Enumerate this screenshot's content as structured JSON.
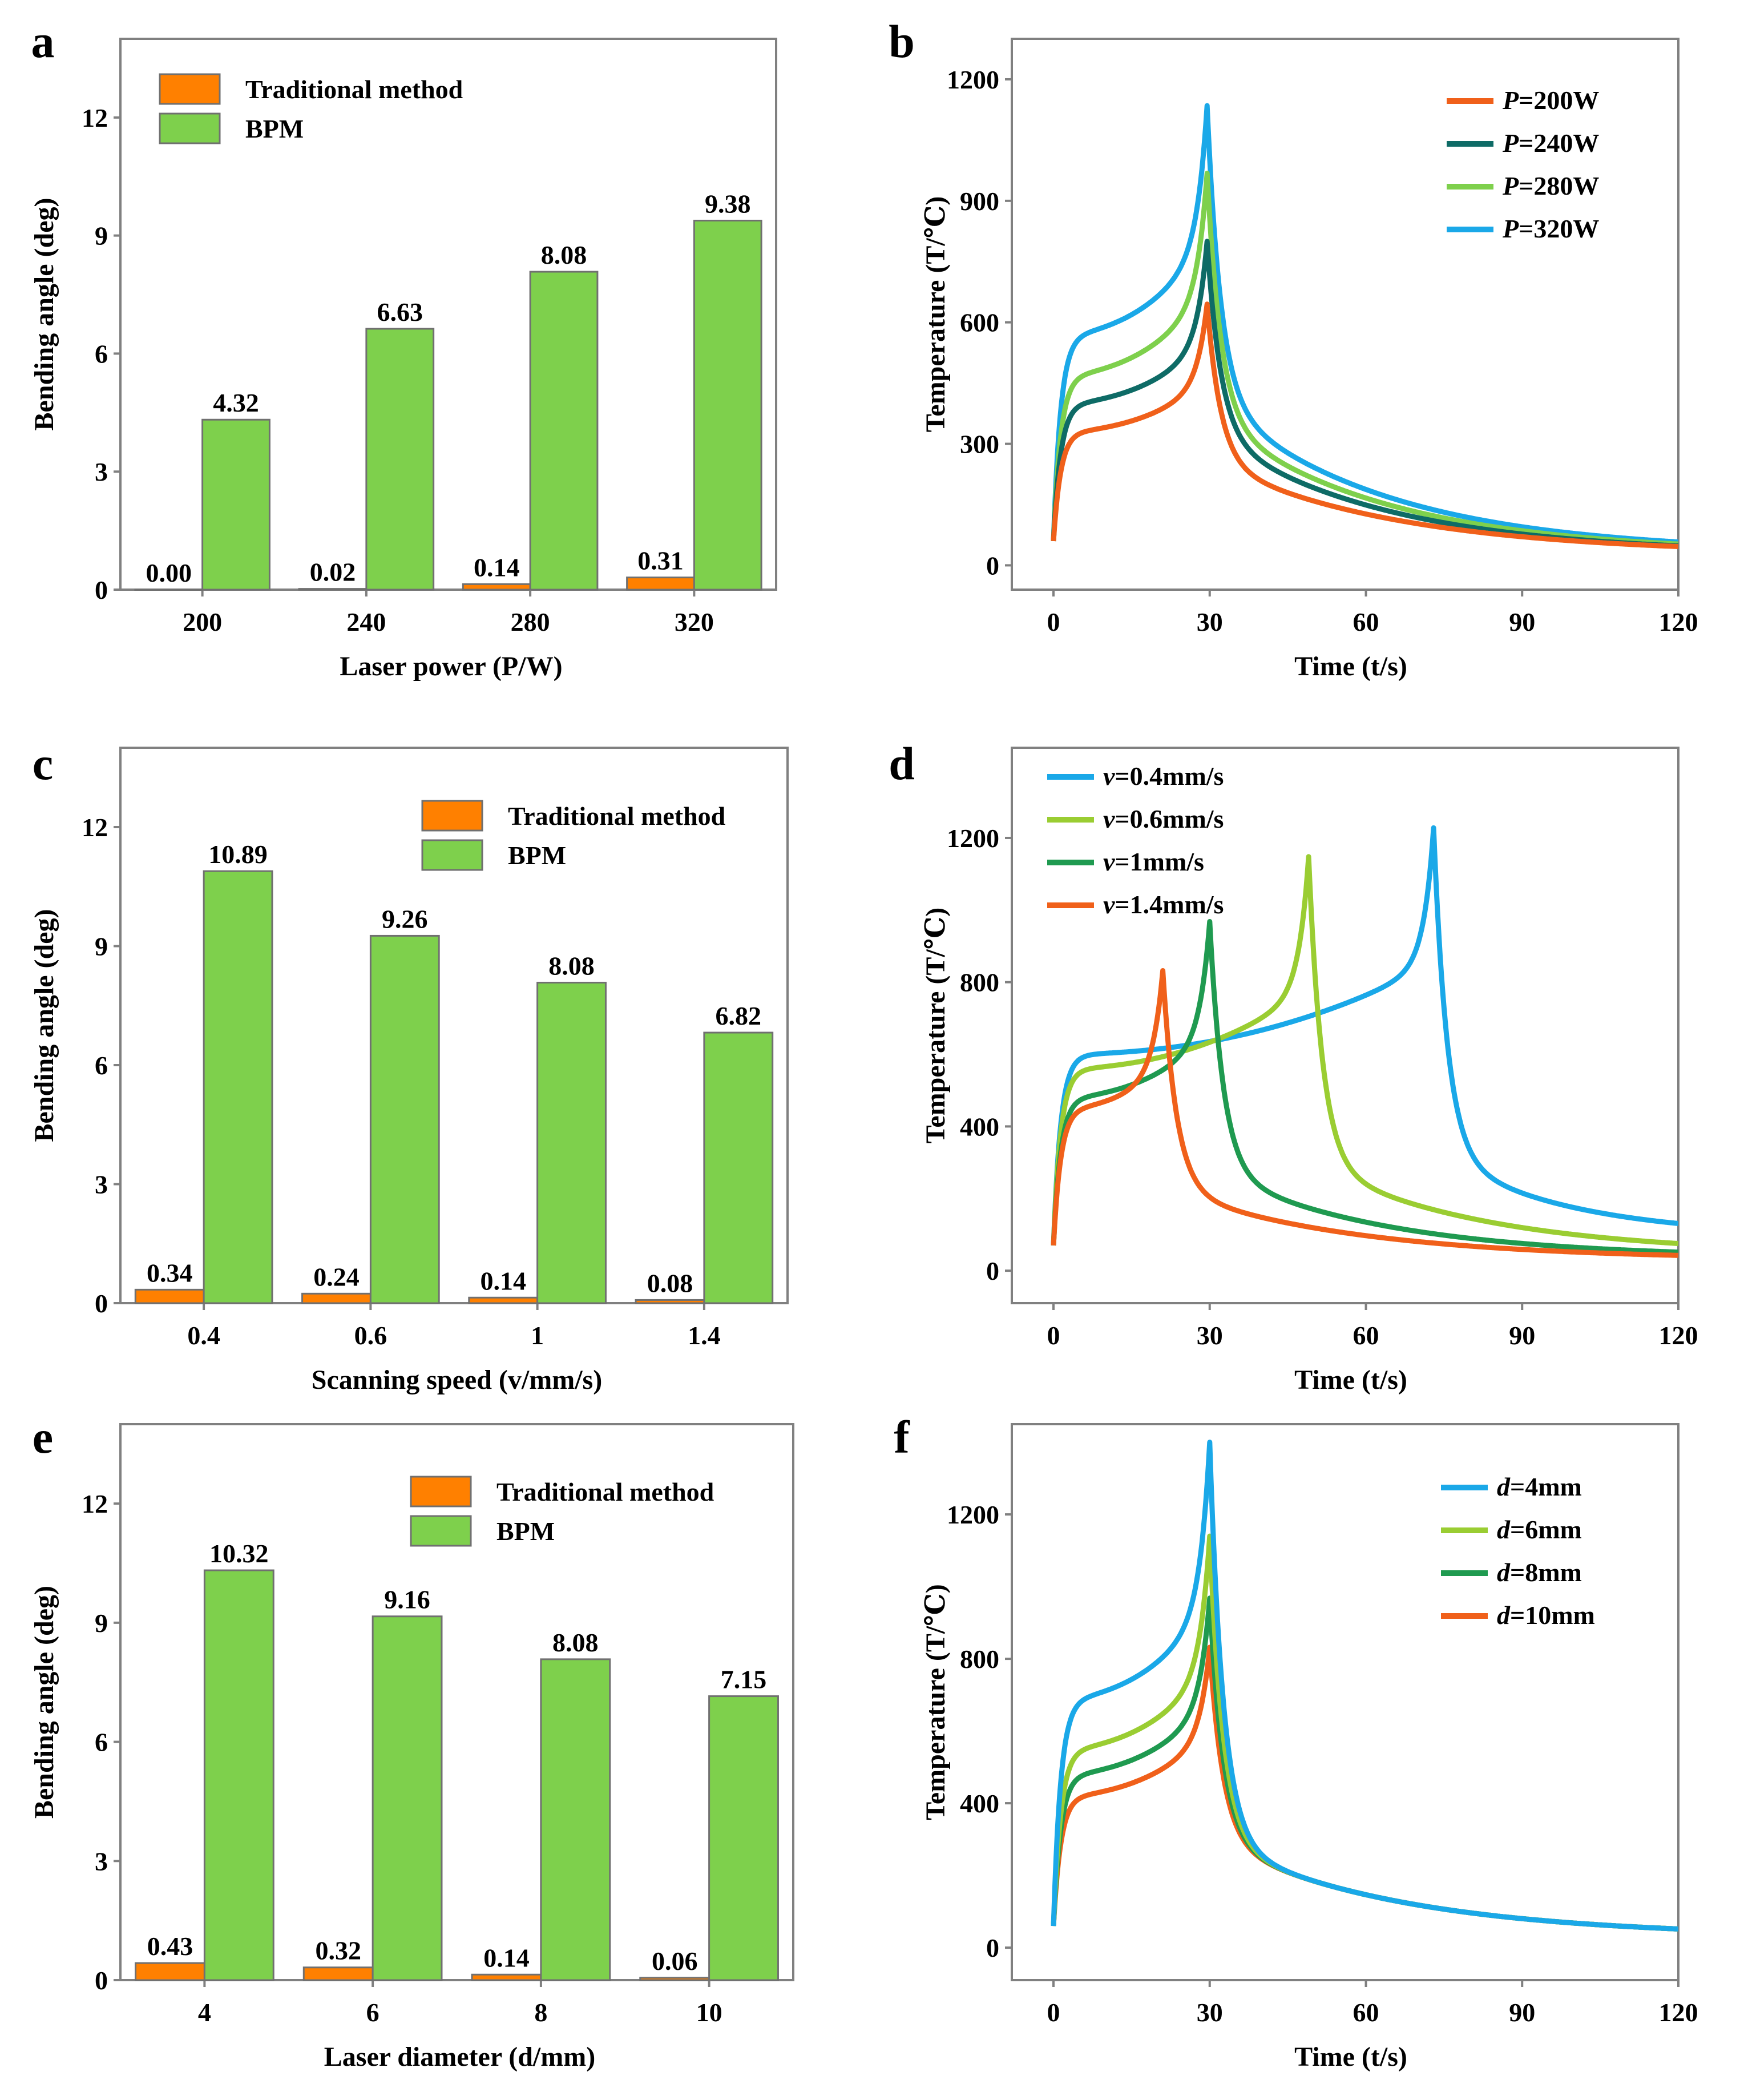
{
  "figure": {
    "colors": {
      "traditional": "#ff8000",
      "bpm": "#7ed04c",
      "axis": "#808080"
    }
  },
  "chart_data": [
    {
      "id": "a",
      "panel": "a",
      "type": "bar",
      "xlabel": "Laser power  (P/W)",
      "ylabel": "Bending angle (deg)",
      "ylim": [
        0,
        14
      ],
      "yticks": [
        0,
        3,
        6,
        9,
        12
      ],
      "categories": [
        "200",
        "240",
        "280",
        "320"
      ],
      "legend_position": "top-left",
      "series": [
        {
          "name": "Traditional method",
          "color": "#ff8000",
          "values": [
            0.0,
            0.02,
            0.14,
            0.31
          ],
          "labels": [
            "0.00",
            "0.02",
            "0.14",
            "0.31"
          ]
        },
        {
          "name": "BPM",
          "color": "#7ed04c",
          "values": [
            4.32,
            6.63,
            8.08,
            9.38
          ],
          "labels": [
            "4.32",
            "6.63",
            "8.08",
            "9.38"
          ]
        }
      ]
    },
    {
      "id": "b",
      "panel": "b",
      "type": "line",
      "xlabel": "Time (t/s)",
      "ylabel": "Temperature (T/℃)",
      "xlim": [
        -8,
        120
      ],
      "ylim": [
        -60,
        1300
      ],
      "xticks": [
        0,
        30,
        60,
        90,
        120
      ],
      "yticks": [
        0,
        300,
        600,
        900,
        1200
      ],
      "legend_position": "top-right",
      "series": [
        {
          "name": "P=200W",
          "var": "P",
          "rest": "=200W",
          "color": "#f0601a",
          "start": 60,
          "shoulder": 330,
          "pre_peak": 460,
          "peak": 645,
          "peak_time": 29.5,
          "after": 260,
          "tail_k": 0.028,
          "end": 28
        },
        {
          "name": "P=240W",
          "var": "P",
          "rest": "=240W",
          "color": "#0e6b66",
          "start": 60,
          "shoulder": 400,
          "pre_peak": 560,
          "peak": 800,
          "peak_time": 29.5,
          "after": 330,
          "tail_k": 0.03,
          "end": 28
        },
        {
          "name": "P=280W",
          "var": "P",
          "rest": "=280W",
          "color": "#7ed04c",
          "start": 60,
          "shoulder": 470,
          "pre_peak": 680,
          "peak": 968,
          "peak_time": 29.5,
          "after": 370,
          "tail_k": 0.03,
          "end": 30
        },
        {
          "name": "P=320W",
          "var": "P",
          "rest": "=320W",
          "color": "#1aa8e8",
          "start": 60,
          "shoulder": 570,
          "pre_peak": 810,
          "peak": 1135,
          "peak_time": 29.5,
          "after": 420,
          "tail_k": 0.03,
          "end": 32
        }
      ]
    },
    {
      "id": "c",
      "panel": "c",
      "type": "bar",
      "xlabel": "Scanning speed  (v/mm/s)",
      "ylabel": "Bending angle (deg)",
      "ylim": [
        0,
        14
      ],
      "yticks": [
        0,
        3,
        6,
        9,
        12
      ],
      "categories": [
        "0.4",
        "0.6",
        "1",
        "1.4"
      ],
      "legend_position": "top-right",
      "series": [
        {
          "name": "Traditional method",
          "color": "#ff8000",
          "values": [
            0.34,
            0.24,
            0.14,
            0.08
          ],
          "labels": [
            "0.34",
            "0.24",
            "0.14",
            "0.08"
          ]
        },
        {
          "name": "BPM",
          "color": "#7ed04c",
          "values": [
            10.89,
            9.26,
            8.08,
            6.82
          ],
          "labels": [
            "10.89",
            "9.26",
            "8.08",
            "6.82"
          ]
        }
      ]
    },
    {
      "id": "d",
      "panel": "d",
      "type": "line",
      "xlabel": "Time (t/s)",
      "ylabel": "Temperature (T/℃)",
      "xlim": [
        -8,
        120
      ],
      "ylim": [
        -90,
        1450
      ],
      "xticks": [
        0,
        30,
        60,
        90,
        120
      ],
      "yticks": [
        0,
        400,
        800,
        1200
      ],
      "legend_position": "top-left",
      "series": [
        {
          "name": "v=0.4mm/s",
          "var": "v",
          "rest": "=0.4mm/s",
          "color": "#1aa8e8",
          "start": 70,
          "shoulder": 600,
          "pre_peak": 880,
          "peak": 1228,
          "peak_time": 73,
          "after": 330,
          "tail_k": 0.04,
          "end": 95
        },
        {
          "name": "v=0.6mm/s",
          "var": "v",
          "rest": "=0.6mm/s",
          "color": "#9acd32",
          "start": 70,
          "shoulder": 560,
          "pre_peak": 800,
          "peak": 1148,
          "peak_time": 49,
          "after": 300,
          "tail_k": 0.03,
          "end": 45
        },
        {
          "name": "v=1mm/s",
          "var": "v",
          "rest": "=1mm/s",
          "color": "#1f9a50",
          "start": 70,
          "shoulder": 480,
          "pre_peak": 660,
          "peak": 968,
          "peak_time": 30,
          "after": 280,
          "tail_k": 0.03,
          "end": 35
        },
        {
          "name": "v=1.4mm/s",
          "var": "v",
          "rest": "=1.4mm/s",
          "color": "#f0601a",
          "start": 70,
          "shoulder": 450,
          "pre_peak": 560,
          "peak": 832,
          "peak_time": 21,
          "after": 230,
          "tail_k": 0.028,
          "end": 30
        }
      ]
    },
    {
      "id": "e",
      "panel": "e",
      "type": "bar",
      "xlabel": "Laser diameter  (d/mm)",
      "ylabel": "Bending angle (deg)",
      "ylim": [
        0,
        14
      ],
      "yticks": [
        0,
        3,
        6,
        9,
        12
      ],
      "categories": [
        "4",
        "6",
        "8",
        "10"
      ],
      "legend_position": "top-right",
      "series": [
        {
          "name": "Traditional method",
          "color": "#ff8000",
          "values": [
            0.43,
            0.32,
            0.14,
            0.06
          ],
          "labels": [
            "0.43",
            "0.32",
            "0.14",
            "0.06"
          ]
        },
        {
          "name": "BPM",
          "color": "#7ed04c",
          "values": [
            10.32,
            9.16,
            8.08,
            7.15
          ],
          "labels": [
            "10.32",
            "9.16",
            "8.08",
            "7.15"
          ]
        }
      ]
    },
    {
      "id": "f",
      "panel": "f",
      "type": "line",
      "xlabel": "Time (t/s)",
      "ylabel": "Temperature (T/℃)",
      "xlim": [
        -8,
        120
      ],
      "ylim": [
        -90,
        1450
      ],
      "xticks": [
        0,
        30,
        60,
        90,
        120
      ],
      "yticks": [
        0,
        400,
        800,
        1200
      ],
      "legend_position": "top-right",
      "series": [
        {
          "name": "d=4mm",
          "var": "d",
          "rest": "=4mm",
          "color": "#1aa8e8",
          "start": 60,
          "shoulder": 690,
          "pre_peak": 960,
          "peak": 1400,
          "peak_time": 30,
          "after": 300,
          "tail_k": 0.028,
          "end": 30
        },
        {
          "name": "d=6mm",
          "var": "d",
          "rest": "=6mm",
          "color": "#9acd32",
          "start": 60,
          "shoulder": 550,
          "pre_peak": 780,
          "peak": 1140,
          "peak_time": 30,
          "after": 300,
          "tail_k": 0.028,
          "end": 30
        },
        {
          "name": "d=8mm",
          "var": "d",
          "rest": "=8mm",
          "color": "#1f9a50",
          "start": 60,
          "shoulder": 480,
          "pre_peak": 680,
          "peak": 968,
          "peak_time": 30,
          "after": 300,
          "tail_k": 0.028,
          "end": 30
        },
        {
          "name": "d=10mm",
          "var": "d",
          "rest": "=10mm",
          "color": "#f0601a",
          "start": 60,
          "shoulder": 420,
          "pre_peak": 600,
          "peak": 832,
          "peak_time": 30,
          "after": 300,
          "tail_k": 0.028,
          "end": 30
        }
      ]
    }
  ]
}
